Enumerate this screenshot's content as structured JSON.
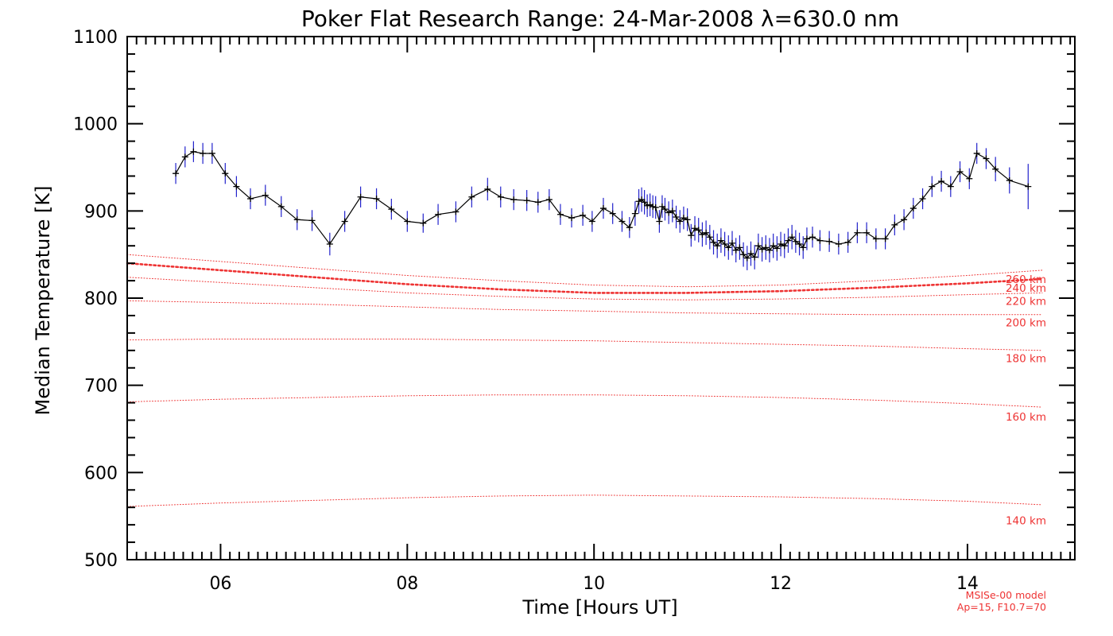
{
  "chart_data": {
    "type": "line",
    "title": "Poker Flat Research Range: 24-Mar-2008 λ=630.0 nm",
    "xlabel": "Time [Hours UT]",
    "ylabel": "Median Temperature [K]",
    "xlim": [
      5.0,
      15.15
    ],
    "ylim": [
      500,
      1100
    ],
    "xticks": [
      6,
      8,
      10,
      12,
      14
    ],
    "xtick_labels": [
      "06",
      "08",
      "10",
      "12",
      "14"
    ],
    "yticks": [
      500,
      600,
      700,
      800,
      900,
      1000,
      1100
    ],
    "ytick_labels": [
      "500",
      "600",
      "700",
      "800",
      "900",
      "1000",
      "1100"
    ],
    "grid": false,
    "colors": {
      "data_line": "#000000",
      "error_bars": "#2222cc",
      "model": "#ee3333"
    },
    "series": [
      {
        "x": [
          5.52,
          5.62,
          5.71,
          5.81,
          5.91,
          6.05,
          6.17,
          6.32,
          6.48,
          6.65,
          6.82,
          6.98,
          7.17,
          7.33,
          7.5,
          7.67,
          7.83,
          8.0,
          8.17,
          8.33,
          8.52,
          8.69,
          8.86,
          9.0,
          9.14,
          9.28,
          9.4,
          9.52,
          9.64,
          9.76,
          9.88,
          9.98,
          10.1,
          10.2,
          10.3,
          10.38,
          10.44,
          10.48,
          10.51,
          10.54,
          10.57,
          10.6,
          10.63,
          10.66,
          10.7,
          10.73,
          10.76,
          10.8,
          10.84,
          10.88,
          10.92,
          10.96,
          11.0,
          11.04,
          11.08,
          11.12,
          11.16,
          11.2,
          11.24,
          11.28,
          11.32,
          11.36,
          11.4,
          11.44,
          11.48,
          11.52,
          11.56,
          11.6,
          11.64,
          11.68,
          11.72,
          11.76,
          11.8,
          11.84,
          11.88,
          11.92,
          11.96,
          12.0,
          12.04,
          12.08,
          12.12,
          12.16,
          12.2,
          12.24,
          12.28,
          12.34,
          12.42,
          12.52,
          12.62,
          12.72,
          12.82,
          12.92,
          13.02,
          13.12,
          13.22,
          13.32,
          13.42,
          13.52,
          13.62,
          13.72,
          13.82,
          13.92,
          14.02,
          14.1,
          14.2,
          14.3,
          14.45,
          14.65
        ],
        "values": [
          943,
          962,
          968,
          966,
          966,
          943,
          928,
          914,
          918,
          905,
          890,
          889,
          862,
          888,
          916,
          914,
          902,
          888,
          886,
          896,
          899,
          916,
          925,
          916,
          913,
          912,
          910,
          913,
          896,
          892,
          895,
          888,
          903,
          897,
          888,
          881,
          897,
          911,
          913,
          910,
          906,
          907,
          905,
          904,
          888,
          905,
          902,
          898,
          900,
          893,
          888,
          892,
          890,
          872,
          880,
          878,
          873,
          875,
          870,
          864,
          860,
          866,
          862,
          858,
          863,
          855,
          858,
          850,
          846,
          851,
          847,
          860,
          856,
          858,
          855,
          860,
          857,
          862,
          860,
          866,
          870,
          865,
          862,
          858,
          868,
          870,
          866,
          865,
          862,
          864,
          875,
          875,
          868,
          868,
          884,
          890,
          903,
          914,
          928,
          934,
          928,
          945,
          937,
          966,
          960,
          948,
          935,
          928
        ],
        "errors": [
          12,
          12,
          12,
          12,
          12,
          12,
          12,
          12,
          12,
          12,
          12,
          12,
          13,
          12,
          12,
          12,
          12,
          12,
          11,
          12,
          12,
          12,
          13,
          12,
          12,
          12,
          12,
          12,
          12,
          11,
          12,
          12,
          12,
          12,
          12,
          12,
          14,
          14,
          14,
          14,
          13,
          13,
          13,
          13,
          13,
          13,
          13,
          13,
          13,
          13,
          13,
          13,
          13,
          13,
          14,
          14,
          14,
          14,
          14,
          14,
          14,
          14,
          14,
          14,
          14,
          14,
          14,
          14,
          14,
          14,
          14,
          14,
          14,
          14,
          14,
          14,
          14,
          14,
          14,
          14,
          14,
          13,
          13,
          13,
          13,
          12,
          12,
          12,
          12,
          12,
          12,
          12,
          12,
          12,
          12,
          12,
          12,
          12,
          12,
          12,
          12,
          12,
          12,
          12,
          12,
          14,
          15,
          26
        ]
      }
    ],
    "model_curves": [
      {
        "label": "260 km",
        "emphasis": false,
        "x": [
          5.0,
          6.0,
          7.0,
          8.0,
          9.0,
          10.0,
          11.0,
          12.0,
          13.0,
          14.0,
          14.8
        ],
        "values": [
          850,
          842,
          834,
          826,
          820,
          815,
          813,
          815,
          820,
          826,
          832
        ]
      },
      {
        "label": "240 km",
        "emphasis": true,
        "x": [
          5.0,
          6.0,
          7.0,
          8.0,
          9.0,
          10.0,
          11.0,
          12.0,
          13.0,
          14.0,
          14.8
        ],
        "values": [
          840,
          832,
          824,
          816,
          810,
          806,
          806,
          808,
          812,
          817,
          822
        ]
      },
      {
        "label": "220 km",
        "emphasis": false,
        "x": [
          5.0,
          6.0,
          7.0,
          8.0,
          9.0,
          10.0,
          11.0,
          12.0,
          13.0,
          14.0,
          14.8
        ],
        "values": [
          824,
          818,
          812,
          806,
          802,
          799,
          798,
          799,
          801,
          804,
          806
        ]
      },
      {
        "label": "200 km",
        "emphasis": false,
        "x": [
          5.0,
          6.0,
          7.0,
          8.0,
          9.0,
          10.0,
          11.0,
          12.0,
          13.0,
          14.0,
          14.8
        ],
        "values": [
          797,
          795,
          793,
          790,
          787,
          785,
          783,
          782,
          781,
          781,
          781
        ]
      },
      {
        "label": "180 km",
        "emphasis": false,
        "x": [
          5.0,
          6.0,
          7.0,
          8.0,
          9.0,
          10.0,
          11.0,
          12.0,
          13.0,
          14.0,
          14.8
        ],
        "values": [
          752,
          753,
          753,
          753,
          752,
          751,
          749,
          747,
          745,
          742,
          740
        ]
      },
      {
        "label": "160 km",
        "emphasis": false,
        "x": [
          5.0,
          6.0,
          7.0,
          8.0,
          9.0,
          10.0,
          11.0,
          12.0,
          13.0,
          14.0,
          14.8
        ],
        "values": [
          681,
          684,
          686,
          688,
          689,
          689,
          688,
          686,
          683,
          679,
          675
        ]
      },
      {
        "label": "140 km",
        "emphasis": false,
        "x": [
          5.0,
          6.0,
          7.0,
          8.0,
          9.0,
          10.0,
          11.0,
          12.0,
          13.0,
          14.0,
          14.8
        ],
        "values": [
          561,
          565,
          568,
          571,
          573,
          574,
          573,
          572,
          570,
          567,
          563
        ]
      }
    ],
    "model_label_temps": [
      822,
      812,
      797,
      772,
      731,
      664,
      545
    ],
    "notes": [
      "MSISe-00 model",
      "Ap=15, F10.7=70"
    ]
  }
}
